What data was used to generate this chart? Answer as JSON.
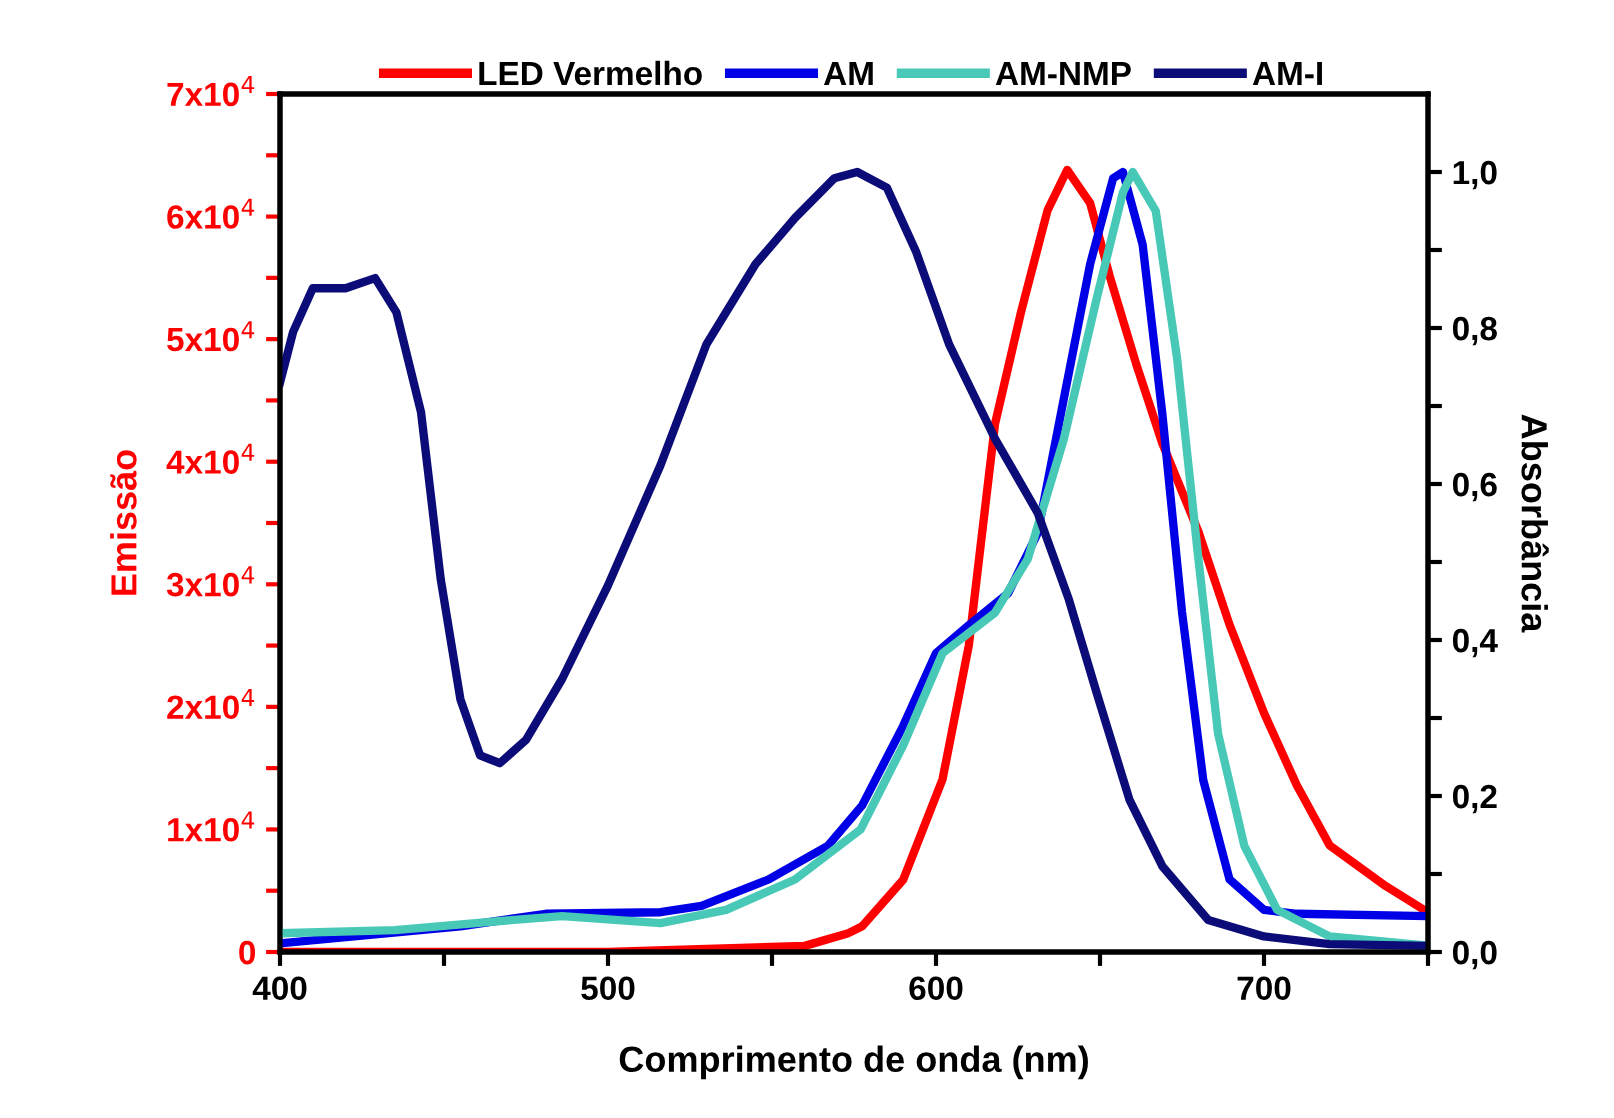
{
  "chart_data": {
    "type": "line",
    "xlabel": "Comprimento de onda (nm)",
    "ylabel": "Emissão",
    "y2label": "Absorbância",
    "xlim": [
      400,
      750
    ],
    "xticks": [
      400,
      {
        "value": 450,
        "label": null
      },
      500,
      {
        "value": 550,
        "label": null
      },
      600,
      {
        "value": 650,
        "label": null
      },
      700,
      {
        "value": 750,
        "label": null
      }
    ],
    "ylim": [
      0,
      70000
    ],
    "yticks": [
      {
        "value": 0,
        "label": "0"
      },
      {
        "value": 5000,
        "label": null
      },
      {
        "value": 10000,
        "label": "1x10$^{4}$"
      },
      {
        "value": 15000,
        "label": null
      },
      {
        "value": 20000,
        "label": "2x10$^{4}$"
      },
      {
        "value": 25000,
        "label": null
      },
      {
        "value": 30000,
        "label": "3x10$^{4}$"
      },
      {
        "value": 35000,
        "label": null
      },
      {
        "value": 40000,
        "label": "4x10$^{4}$"
      },
      {
        "value": 45000,
        "label": null
      },
      {
        "value": 50000,
        "label": "5x10$^{4}$"
      },
      {
        "value": 55000,
        "label": null
      },
      {
        "value": 60000,
        "label": "6x10$^{4}$"
      },
      {
        "value": 65000,
        "label": null
      },
      {
        "value": 70000,
        "label": "7x10$^{4}$"
      }
    ],
    "y2lim": [
      0,
      1.1
    ],
    "y2ticks": [
      {
        "value": 0,
        "label": "0,0"
      },
      {
        "value": 0.1,
        "label": null
      },
      {
        "value": 0.2,
        "label": "0,2"
      },
      {
        "value": 0.3,
        "label": null
      },
      {
        "value": 0.4,
        "label": "0,4"
      },
      {
        "value": 0.5,
        "label": null
      },
      {
        "value": 0.6,
        "label": "0,6"
      },
      {
        "value": 0.7,
        "label": null
      },
      {
        "value": 0.8,
        "label": "0,8"
      },
      {
        "value": 0.9,
        "label": null
      },
      {
        "value": 1.0,
        "label": "1,0"
      }
    ],
    "grid": false,
    "legend": "top",
    "marker": "none",
    "line_style": "solid",
    "series": [
      {
        "name": "LED Vermelho",
        "color": "#ff0000",
        "x": [
          400,
          500,
          560,
          573,
          577.5,
          590,
          602,
          610,
          618,
          626,
          634,
          640,
          647,
          653,
          661,
          669,
          680,
          689.5,
          700,
          710,
          720,
          737,
          749
        ],
        "values": [
          0,
          0,
          500,
          1500,
          2100,
          5900,
          14100,
          25000,
          43100,
          52300,
          60500,
          63800,
          61100,
          55100,
          48000,
          41500,
          34300,
          26700,
          19500,
          13600,
          8700,
          5400,
          3400
        ]
      },
      {
        "name": "AM",
        "color": "#0000e6",
        "axis": "y2",
        "x": [
          400,
          455,
          481,
          516,
          528.5,
          549,
          567,
          577.5,
          590,
          600,
          610,
          622,
          631,
          639,
          647,
          654,
          657,
          663,
          669,
          675,
          681.5,
          689.5,
          700,
          710,
          750
        ],
        "values": [
          0.011,
          0.033,
          0.049,
          0.051,
          0.059,
          0.093,
          0.136,
          0.188,
          0.29,
          0.383,
          0.419,
          0.46,
          0.537,
          0.71,
          0.882,
          0.992,
          1.0,
          0.907,
          0.69,
          0.436,
          0.22,
          0.093,
          0.054,
          0.049,
          0.046
        ]
      },
      {
        "name": "AM-NMP",
        "color": "#48c9b8",
        "axis": "y2",
        "x": [
          400,
          435,
          465,
          486,
          516,
          536,
          557,
          577,
          590,
          602,
          618,
          628,
          639,
          649,
          657,
          660,
          667,
          673.5,
          680,
          686,
          694,
          704,
          720,
          750
        ],
        "values": [
          0.024,
          0.028,
          0.039,
          0.046,
          0.037,
          0.054,
          0.093,
          0.157,
          0.265,
          0.383,
          0.435,
          0.504,
          0.658,
          0.838,
          0.974,
          1.0,
          0.95,
          0.761,
          0.504,
          0.28,
          0.136,
          0.054,
          0.02,
          0.008
        ]
      },
      {
        "name": "AM-I",
        "color": "#0c0c78",
        "axis": "y2",
        "x": [
          400,
          404,
          410,
          420,
          429,
          435.5,
          443,
          449,
          455,
          461,
          467,
          475,
          486,
          500,
          516,
          530,
          545,
          557,
          569,
          576,
          585,
          594,
          604,
          618,
          631,
          640.5,
          649,
          659,
          669,
          683,
          700,
          720,
          749
        ],
        "values": [
          0.73,
          0.795,
          0.851,
          0.851,
          0.864,
          0.82,
          0.692,
          0.478,
          0.324,
          0.252,
          0.242,
          0.272,
          0.35,
          0.47,
          0.624,
          0.779,
          0.882,
          0.941,
          0.992,
          1.0,
          0.98,
          0.897,
          0.779,
          0.658,
          0.563,
          0.452,
          0.332,
          0.195,
          0.11,
          0.041,
          0.02,
          0.01,
          0.008
        ]
      }
    ]
  }
}
